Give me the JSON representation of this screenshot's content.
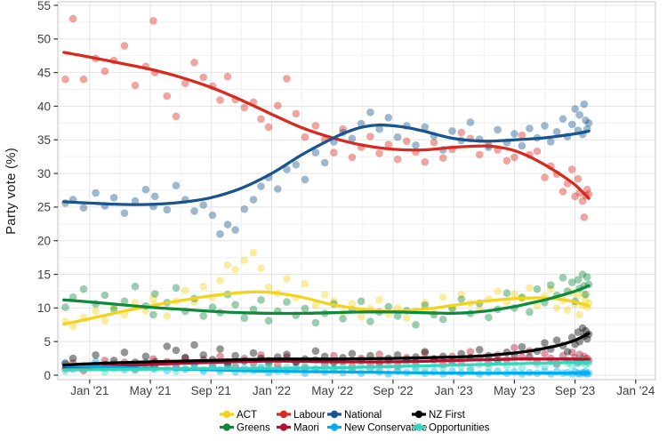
{
  "chart_data": {
    "type": "scatter",
    "title": "",
    "xlabel": "",
    "ylabel": "Party vote (%)",
    "ylim": [
      0,
      55
    ],
    "xlim_months": [
      -2.1,
      37.3
    ],
    "grid": true,
    "legend_position": "bottom",
    "point_opacity": 0.42,
    "y_ticks": [
      0,
      5,
      10,
      15,
      20,
      25,
      30,
      35,
      40,
      45,
      50,
      55
    ],
    "y_minor_ticks": [
      2.5,
      7.5,
      12.5,
      17.5,
      22.5,
      27.5,
      32.5,
      37.5,
      42.5,
      47.5,
      52.5
    ],
    "x_ticks": [
      {
        "m": 0,
        "label": "Jan '21"
      },
      {
        "m": 4,
        "label": "May '21"
      },
      {
        "m": 8,
        "label": "Sep '21"
      },
      {
        "m": 12,
        "label": "Jan '22"
      },
      {
        "m": 16,
        "label": "May '22"
      },
      {
        "m": 20,
        "label": "Sep '22"
      },
      {
        "m": 24,
        "label": "Jan '23"
      },
      {
        "m": 28,
        "label": "May '23"
      },
      {
        "m": 32,
        "label": "Sep '23"
      },
      {
        "m": 36,
        "label": "Jan '24"
      }
    ],
    "x_minor_ticks": [
      -2,
      2,
      6,
      10,
      14,
      18,
      22,
      26,
      30,
      34
    ],
    "poll_dates_months": [
      -1.6,
      -1.1,
      -0.4,
      0.4,
      1.0,
      1.6,
      2.3,
      3.0,
      3.7,
      4.2,
      4.3,
      5.1,
      5.7,
      6.3,
      6.9,
      7.5,
      8.1,
      8.6,
      9.1,
      9.6,
      10.2,
      10.8,
      11.3,
      11.8,
      12.4,
      13.0,
      13.6,
      14.2,
      14.9,
      15.5,
      16.1,
      16.7,
      17.3,
      17.9,
      18.5,
      19.1,
      19.7,
      20.3,
      20.9,
      21.5,
      22.1,
      22.7,
      23.3,
      23.9,
      24.5,
      25.1,
      25.7,
      26.3,
      26.9,
      27.5,
      28.0,
      28.5,
      29.0,
      29.5,
      30.0,
      30.4,
      30.8,
      31.2,
      31.5,
      31.8,
      32.0,
      32.2,
      32.3,
      32.5,
      32.6,
      32.7,
      32.8,
      32.9
    ],
    "series": [
      {
        "name": "ACT",
        "color": "#F2D41E",
        "points": [
          8.0,
          7.3,
          8.6,
          9.5,
          8.1,
          10.2,
          9.0,
          10.8,
          9.6,
          11.4,
          10.5,
          8.8,
          11.0,
          12.6,
          10.9,
          13.2,
          11.6,
          14.1,
          16.4,
          15.7,
          17.1,
          18.2,
          15.9,
          13.1,
          12.2,
          14.3,
          11.5,
          13.6,
          10.4,
          12.0,
          11.0,
          9.3,
          10.6,
          8.7,
          9.9,
          11.2,
          9.1,
          10.0,
          8.5,
          9.6,
          10.8,
          9.4,
          11.6,
          10.1,
          12.0,
          10.7,
          9.8,
          11.3,
          12.5,
          10.9,
          12.1,
          11.4,
          13.0,
          10.3,
          11.8,
          12.8,
          10.0,
          11.1,
          9.7,
          12.3,
          10.6,
          11.9,
          9.0,
          10.4,
          12.0,
          11.2,
          10.1,
          10.7
        ],
        "trend": {
          "x": [
            -1.7,
            0,
            2,
            4,
            6,
            8,
            10,
            11,
            12,
            13,
            14,
            16,
            18,
            20,
            22,
            24,
            26,
            28,
            30,
            31,
            32,
            32.9
          ],
          "y": [
            7.6,
            8.4,
            9.4,
            10.3,
            11.1,
            11.8,
            12.3,
            12.4,
            12.3,
            12.0,
            11.6,
            10.5,
            9.8,
            9.5,
            9.8,
            10.4,
            11.0,
            11.4,
            11.5,
            11.3,
            10.9,
            10.3
          ]
        }
      },
      {
        "name": "Greens",
        "color": "#0F8A3D",
        "points": [
          10.1,
          11.6,
          12.8,
          10.6,
          11.9,
          9.8,
          11.0,
          13.2,
          10.3,
          9.0,
          12.1,
          10.8,
          13.0,
          9.5,
          11.4,
          8.8,
          10.1,
          9.3,
          12.0,
          10.5,
          8.5,
          9.8,
          11.2,
          8.1,
          9.5,
          10.9,
          8.9,
          9.9,
          7.8,
          9.2,
          10.6,
          8.4,
          9.7,
          11.0,
          8.0,
          9.4,
          10.2,
          8.8,
          9.6,
          7.5,
          10.4,
          9.0,
          8.3,
          9.9,
          11.3,
          9.2,
          10.7,
          8.6,
          9.8,
          12.2,
          10.0,
          11.6,
          9.4,
          12.8,
          10.8,
          13.4,
          11.9,
          14.5,
          12.5,
          13.8,
          11.0,
          14.2,
          12.9,
          15.0,
          13.3,
          12.0,
          14.6,
          13.5
        ],
        "trend": {
          "x": [
            -1.7,
            0,
            2,
            4,
            6,
            8,
            10,
            12,
            14,
            16,
            18,
            20,
            22,
            24,
            26,
            28,
            29,
            30,
            31,
            32,
            32.9
          ],
          "y": [
            11.2,
            10.9,
            10.5,
            10.1,
            9.8,
            9.5,
            9.3,
            9.2,
            9.2,
            9.3,
            9.4,
            9.4,
            9.3,
            9.2,
            9.5,
            10.2,
            10.7,
            11.2,
            11.8,
            12.5,
            13.3
          ]
        }
      },
      {
        "name": "Labour",
        "color": "#D82A20",
        "points": [
          44.0,
          53.0,
          44.0,
          47.1,
          45.2,
          46.8,
          49.0,
          43.1,
          45.9,
          52.7,
          45.0,
          41.5,
          38.5,
          43.4,
          46.5,
          44.3,
          43.0,
          40.9,
          44.4,
          41.0,
          39.8,
          40.6,
          38.1,
          36.9,
          40.1,
          44.1,
          38.9,
          35.4,
          37.1,
          35.0,
          33.1,
          36.6,
          32.4,
          33.9,
          35.5,
          33.0,
          34.3,
          32.1,
          34.8,
          33.2,
          31.7,
          34.6,
          32.3,
          33.6,
          36.1,
          35.2,
          32.8,
          34.2,
          33.5,
          31.9,
          32.4,
          35.7,
          32.8,
          33.3,
          29.4,
          31.1,
          29.9,
          27.3,
          28.5,
          30.6,
          26.6,
          29.2,
          27.1,
          25.9,
          23.5,
          26.7,
          27.6,
          26.9
        ],
        "trend": {
          "x": [
            -1.7,
            0,
            2,
            4,
            6,
            8,
            10,
            12,
            14,
            16,
            18,
            20,
            22,
            24,
            26,
            27,
            28,
            29,
            30,
            31,
            32,
            32.9
          ],
          "y": [
            48.0,
            47.3,
            46.4,
            45.5,
            44.3,
            42.8,
            40.9,
            38.8,
            36.8,
            35.3,
            34.2,
            33.6,
            33.5,
            33.9,
            34.1,
            33.9,
            33.4,
            32.5,
            31.3,
            29.9,
            28.3,
            26.3
          ]
        }
      },
      {
        "name": "Maori",
        "color": "#B2122E",
        "points": [
          1.0,
          1.8,
          0.7,
          1.5,
          2.2,
          1.2,
          1.9,
          0.9,
          1.6,
          2.4,
          1.3,
          2.0,
          1.1,
          2.6,
          1.7,
          2.3,
          1.4,
          2.8,
          2.0,
          1.2,
          2.5,
          1.8,
          3.0,
          2.2,
          1.5,
          2.7,
          1.9,
          1.1,
          2.3,
          1.6,
          2.9,
          2.0,
          1.3,
          2.5,
          1.7,
          3.1,
          2.2,
          1.4,
          2.6,
          1.9,
          3.3,
          2.4,
          1.6,
          2.8,
          2.1,
          3.5,
          2.6,
          1.8,
          3.0,
          2.3,
          4.1,
          2.7,
          3.6,
          2.0,
          3.2,
          2.5,
          1.7,
          2.9,
          2.2,
          3.4,
          2.6,
          1.9,
          3.1,
          2.4,
          2.8,
          2.1,
          2.5,
          2.2
        ],
        "trend": {
          "x": [
            -1.7,
            0,
            4,
            8,
            12,
            16,
            20,
            24,
            28,
            30,
            32,
            32.9
          ],
          "y": [
            1.1,
            1.2,
            1.6,
            1.9,
            2.1,
            2.0,
            2.0,
            2.2,
            2.4,
            2.4,
            2.4,
            2.3
          ]
        }
      },
      {
        "name": "National",
        "color": "#19558C",
        "points": [
          25.6,
          26.1,
          24.9,
          27.1,
          25.2,
          26.4,
          24.1,
          25.9,
          27.6,
          25.1,
          26.6,
          24.6,
          28.2,
          26.1,
          24.4,
          25.3,
          23.8,
          21.0,
          22.4,
          21.6,
          24.7,
          26.1,
          28.1,
          29.4,
          27.7,
          30.6,
          31.3,
          29.1,
          33.1,
          31.6,
          34.7,
          36.1,
          35.2,
          37.4,
          39.1,
          36.6,
          38.3,
          35.4,
          37.1,
          34.2,
          36.9,
          35.6,
          33.5,
          36.3,
          34.9,
          37.6,
          35.1,
          33.9,
          36.5,
          34.6,
          35.9,
          34.1,
          36.7,
          35.3,
          37.1,
          34.7,
          36.2,
          38.1,
          35.5,
          37.3,
          39.6,
          36.4,
          38.7,
          35.8,
          40.3,
          37.9,
          36.6,
          37.5
        ],
        "trend": {
          "x": [
            -1.7,
            0,
            2,
            4,
            6,
            8,
            10,
            12,
            14,
            16,
            17,
            18,
            19,
            20,
            21,
            22,
            24,
            26,
            28,
            30,
            32,
            32.9
          ],
          "y": [
            25.8,
            25.6,
            25.4,
            25.4,
            25.7,
            26.4,
            27.8,
            30.0,
            32.8,
            35.2,
            36.2,
            36.9,
            37.2,
            37.1,
            36.8,
            36.3,
            35.2,
            34.8,
            35.0,
            35.3,
            35.9,
            36.3
          ]
        }
      },
      {
        "name": "New Conservative",
        "color": "#00AEEF",
        "points": [
          1.6,
          0.9,
          1.4,
          2.0,
          1.1,
          1.7,
          0.8,
          1.3,
          1.9,
          1.0,
          1.5,
          0.7,
          1.2,
          0.9,
          1.6,
          0.6,
          1.1,
          0.8,
          1.4,
          0.5,
          1.0,
          0.7,
          1.2,
          0.4,
          0.9,
          0.6,
          1.1,
          0.3,
          0.8,
          0.5,
          1.0,
          0.4,
          0.7,
          0.3,
          0.9,
          0.5,
          0.2,
          0.6,
          0.4,
          0.8,
          0.3,
          0.5,
          0.2,
          0.6,
          0.3,
          0.7,
          0.2,
          0.4,
          0.6,
          0.3,
          0.5,
          0.2,
          0.4,
          0.3,
          0.6,
          0.2,
          0.5,
          0.3,
          0.4,
          0.2,
          0.5,
          0.3,
          0.2,
          0.4,
          0.3,
          0.5,
          0.2,
          0.3
        ],
        "trend": {
          "x": [
            -1.7,
            0,
            4,
            8,
            12,
            16,
            20,
            24,
            28,
            32,
            32.9
          ],
          "y": [
            1.4,
            1.3,
            1.0,
            0.8,
            0.6,
            0.5,
            0.4,
            0.3,
            0.3,
            0.3,
            0.3
          ]
        }
      },
      {
        "name": "NZ First",
        "color": "#000000",
        "points": [
          1.8,
          2.5,
          1.2,
          3.0,
          1.6,
          2.2,
          3.4,
          1.9,
          2.8,
          1.4,
          2.0,
          4.3,
          3.7,
          2.6,
          4.5,
          3.0,
          2.3,
          3.9,
          1.7,
          2.9,
          2.1,
          3.3,
          2.5,
          1.8,
          2.7,
          3.1,
          2.0,
          2.4,
          3.6,
          2.8,
          1.9,
          2.6,
          3.2,
          2.2,
          2.9,
          1.8,
          2.5,
          3.0,
          2.3,
          2.7,
          3.5,
          2.4,
          2.8,
          2.0,
          3.2,
          2.6,
          3.8,
          2.9,
          2.2,
          3.4,
          3.0,
          4.2,
          2.7,
          3.6,
          4.8,
          3.9,
          5.2,
          4.4,
          3.5,
          5.6,
          4.6,
          6.4,
          5.0,
          7.0,
          5.8,
          6.6,
          5.4,
          6.1
        ],
        "trend": {
          "x": [
            -1.7,
            0,
            4,
            8,
            12,
            16,
            20,
            24,
            26,
            28,
            29,
            30,
            31,
            32,
            32.9
          ],
          "y": [
            1.5,
            1.7,
            2.0,
            2.2,
            2.4,
            2.4,
            2.5,
            2.7,
            2.9,
            3.3,
            3.6,
            4.0,
            4.5,
            5.2,
            6.2
          ]
        }
      },
      {
        "name": "Opportunities",
        "color": "#36D6BE",
        "points": [
          0.6,
          1.2,
          0.8,
          1.5,
          0.5,
          1.0,
          1.4,
          0.7,
          1.1,
          1.6,
          0.9,
          1.3,
          0.6,
          1.0,
          1.5,
          0.8,
          1.2,
          0.5,
          1.0,
          1.4,
          0.7,
          1.1,
          0.9,
          1.5,
          0.6,
          1.2,
          0.8,
          1.4,
          1.0,
          1.6,
          0.7,
          1.3,
          0.9,
          1.5,
          1.1,
          0.8,
          1.4,
          1.0,
          1.7,
          1.2,
          0.9,
          1.5,
          1.1,
          1.8,
          1.3,
          1.0,
          1.6,
          1.2,
          2.0,
          1.4,
          1.8,
          1.1,
          2.2,
          1.6,
          1.3,
          2.0,
          1.5,
          2.4,
          1.8,
          1.4,
          2.1,
          1.7,
          2.5,
          1.9,
          2.2,
          1.6,
          2.0,
          1.8
        ],
        "trend": {
          "x": [
            -1.7,
            0,
            4,
            8,
            12,
            16,
            20,
            24,
            28,
            30,
            32,
            32.9
          ],
          "y": [
            0.8,
            0.8,
            0.9,
            1.0,
            1.0,
            1.1,
            1.3,
            1.5,
            1.7,
            1.8,
            1.9,
            2.0
          ]
        }
      }
    ],
    "legend": {
      "rows": [
        [
          "ACT",
          "Labour",
          "National",
          "NZ First"
        ],
        [
          "Greens",
          "Maori",
          "New Conservative",
          "Opportunities"
        ]
      ]
    },
    "colors": {
      "major_grid": "#E4E4E4",
      "minor_grid": "#F1F1F1",
      "panel_border": "#CFCFCF",
      "tick_mark": "#333333",
      "tick_label": "#404040",
      "background": "#FFFFFF"
    }
  }
}
